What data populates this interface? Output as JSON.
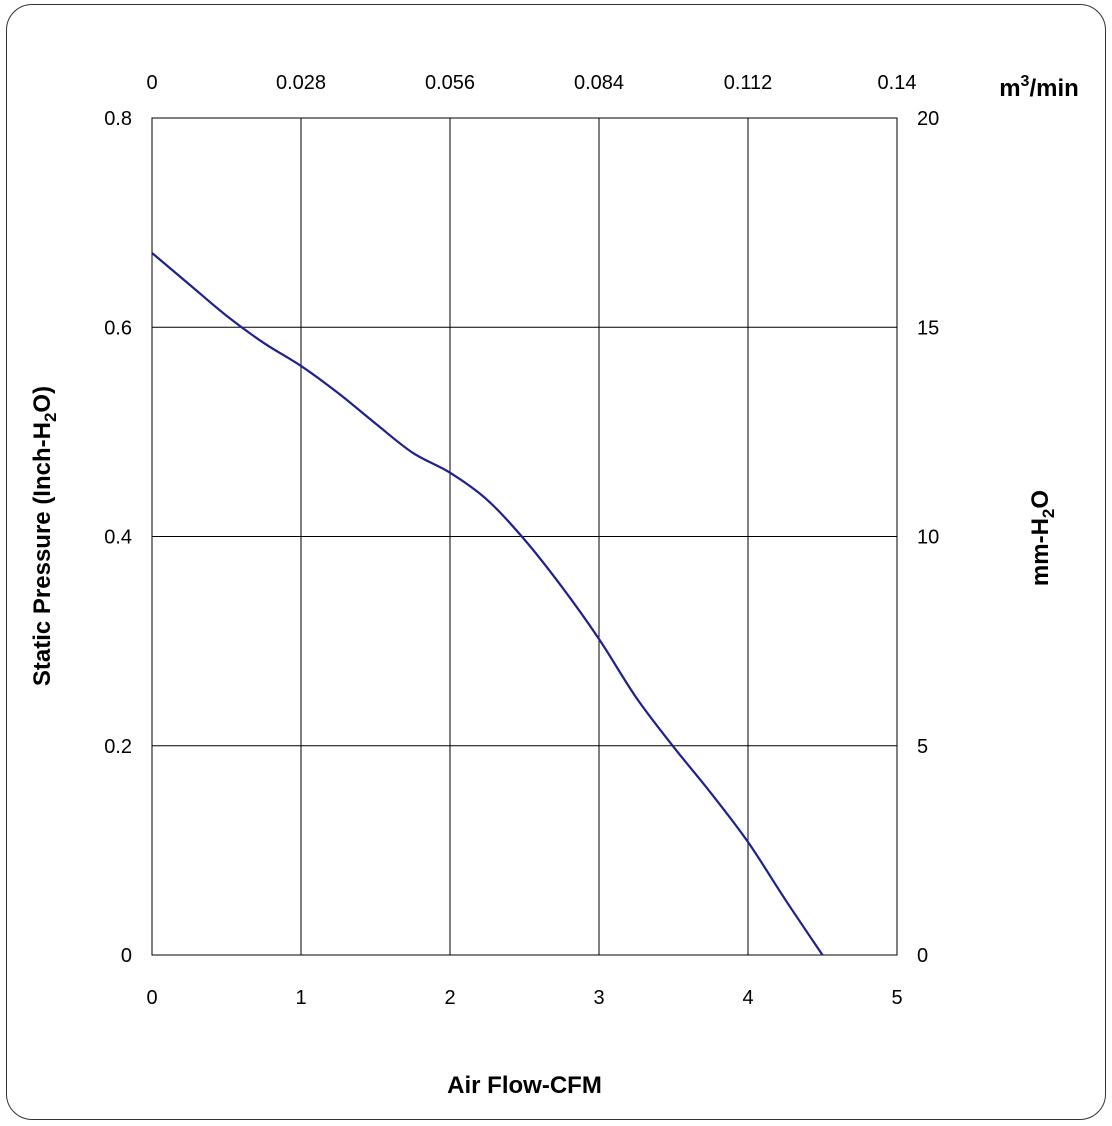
{
  "chart_data": {
    "type": "line",
    "title": "",
    "xlabel": "Air Flow-CFM",
    "ylabel": {
      "main": "Static Pressure (Inch-H",
      "sub": "2",
      "tail": "O)"
    },
    "y2label": {
      "main": "mm-H",
      "sub": "2",
      "tail": "O"
    },
    "x2label": {
      "main": "m",
      "sup": "3",
      "tail": "/min"
    },
    "xlim": [
      0,
      5
    ],
    "ylim": [
      0,
      0.8
    ],
    "x_ticks": [
      "0",
      "1",
      "2",
      "3",
      "4",
      "5"
    ],
    "y_ticks": [
      "0",
      "0.2",
      "0.4",
      "0.6",
      "0.8"
    ],
    "x2_ticks": [
      "0",
      "0.028",
      "0.056",
      "0.084",
      "0.112",
      "0.14"
    ],
    "y2_ticks": [
      "0",
      "5",
      "10",
      "15",
      "20"
    ],
    "grid": true,
    "series": [
      {
        "color": "#1f1f8f",
        "x": [
          0,
          0.25,
          0.5,
          0.75,
          1.0,
          1.25,
          1.5,
          1.75,
          2.0,
          2.25,
          2.5,
          2.75,
          3.0,
          3.25,
          3.5,
          3.75,
          4.0,
          4.25,
          4.5
        ],
        "y": [
          0.671,
          0.641,
          0.611,
          0.585,
          0.563,
          0.537,
          0.508,
          0.48,
          0.461,
          0.435,
          0.397,
          0.352,
          0.302,
          0.246,
          0.199,
          0.155,
          0.108,
          0.053,
          0.0
        ]
      }
    ]
  }
}
